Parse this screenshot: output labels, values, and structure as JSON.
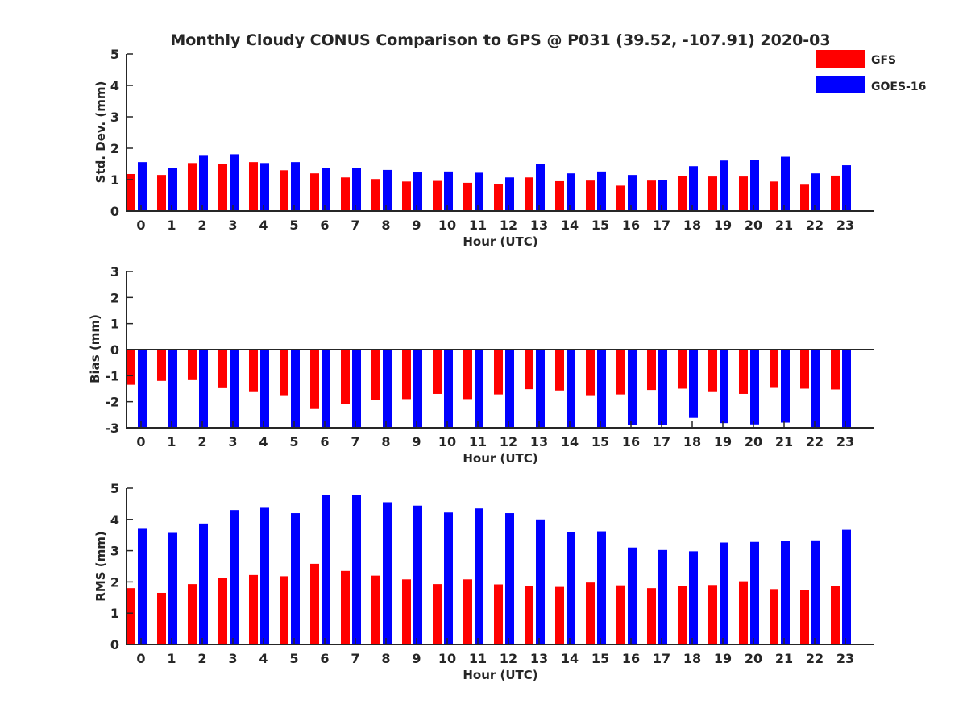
{
  "title": "Monthly Cloudy CONUS Comparison to GPS @ P031 (39.52, -107.91) 2020-03",
  "colors": {
    "GFS": "#ff0000",
    "GOES-16": "#0000ff"
  },
  "legend": {
    "placement": "top-right",
    "items": [
      "GFS",
      "GOES-16"
    ]
  },
  "chart_data": [
    {
      "type": "bar",
      "ylabel": "Std. Dev. (mm)",
      "xlabel": "Hour (UTC)",
      "ylim": [
        0,
        5
      ],
      "yticks": [
        0,
        1,
        2,
        3,
        4,
        5
      ],
      "categories": [
        "0",
        "1",
        "2",
        "3",
        "4",
        "5",
        "6",
        "7",
        "8",
        "9",
        "10",
        "11",
        "12",
        "13",
        "14",
        "15",
        "16",
        "17",
        "18",
        "19",
        "20",
        "21",
        "22",
        "23"
      ],
      "series": [
        {
          "name": "GFS",
          "values": [
            1.18,
            1.15,
            1.53,
            1.5,
            1.56,
            1.3,
            1.2,
            1.07,
            1.02,
            0.94,
            0.96,
            0.9,
            0.86,
            1.07,
            0.95,
            0.97,
            0.81,
            0.97,
            1.12,
            1.1,
            1.1,
            0.94,
            0.84,
            1.13
          ]
        },
        {
          "name": "GOES-16",
          "values": [
            1.56,
            1.38,
            1.76,
            1.81,
            1.53,
            1.56,
            1.38,
            1.38,
            1.31,
            1.23,
            1.26,
            1.22,
            1.07,
            1.5,
            1.2,
            1.26,
            1.15,
            1.0,
            1.43,
            1.61,
            1.63,
            1.73,
            1.2,
            1.46
          ]
        }
      ]
    },
    {
      "type": "bar",
      "ylabel": "Bias (mm)",
      "xlabel": "Hour (UTC)",
      "ylim": [
        -3,
        3
      ],
      "yticks": [
        -3,
        -2,
        -1,
        0,
        1,
        2,
        3
      ],
      "categories": [
        "0",
        "1",
        "2",
        "3",
        "4",
        "5",
        "6",
        "7",
        "8",
        "9",
        "10",
        "11",
        "12",
        "13",
        "14",
        "15",
        "16",
        "17",
        "18",
        "19",
        "20",
        "21",
        "22",
        "23"
      ],
      "series": [
        {
          "name": "GFS",
          "values": [
            -1.35,
            -1.2,
            -1.17,
            -1.48,
            -1.6,
            -1.75,
            -2.28,
            -2.08,
            -1.93,
            -1.9,
            -1.7,
            -1.9,
            -1.72,
            -1.52,
            -1.57,
            -1.75,
            -1.72,
            -1.55,
            -1.5,
            -1.6,
            -1.7,
            -1.47,
            -1.5,
            -1.53
          ]
        },
        {
          "name": "GOES-16",
          "values": [
            -3.0,
            -3.0,
            -3.0,
            -3.0,
            -3.0,
            -3.0,
            -3.0,
            -3.0,
            -3.0,
            -3.0,
            -3.0,
            -3.0,
            -3.0,
            -3.0,
            -3.0,
            -3.0,
            -2.88,
            -2.88,
            -2.62,
            -2.82,
            -2.87,
            -2.8,
            -3.0,
            -3.0
          ]
        }
      ]
    },
    {
      "type": "bar",
      "ylabel": "RMS (mm)",
      "xlabel": "Hour (UTC)",
      "ylim": [
        0,
        5
      ],
      "yticks": [
        0,
        1,
        2,
        3,
        4,
        5
      ],
      "categories": [
        "0",
        "1",
        "2",
        "3",
        "4",
        "5",
        "6",
        "7",
        "8",
        "9",
        "10",
        "11",
        "12",
        "13",
        "14",
        "15",
        "16",
        "17",
        "18",
        "19",
        "20",
        "21",
        "22",
        "23"
      ],
      "series": [
        {
          "name": "GFS",
          "values": [
            1.8,
            1.65,
            1.93,
            2.13,
            2.22,
            2.18,
            2.58,
            2.35,
            2.2,
            2.08,
            1.93,
            2.08,
            1.92,
            1.87,
            1.84,
            1.98,
            1.89,
            1.8,
            1.86,
            1.9,
            2.02,
            1.77,
            1.73,
            1.88
          ]
        },
        {
          "name": "GOES-16",
          "values": [
            3.7,
            3.57,
            3.87,
            4.3,
            4.37,
            4.2,
            4.77,
            4.77,
            4.55,
            4.44,
            4.22,
            4.35,
            4.2,
            4.0,
            3.6,
            3.62,
            3.1,
            3.02,
            2.98,
            3.26,
            3.28,
            3.3,
            3.33,
            3.67
          ]
        }
      ]
    }
  ]
}
